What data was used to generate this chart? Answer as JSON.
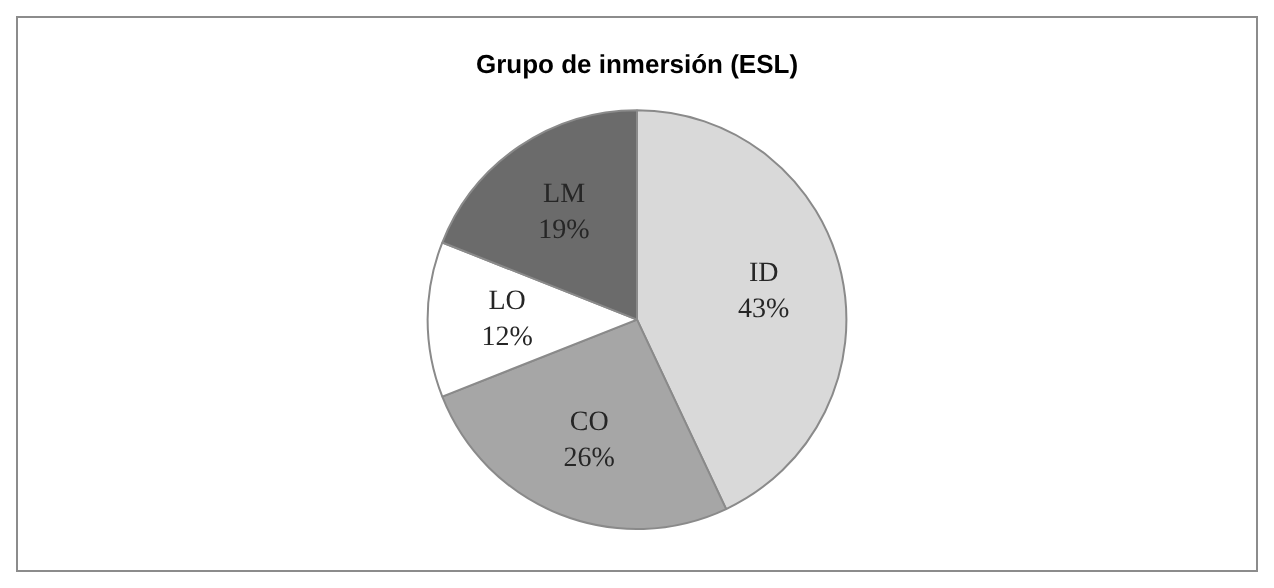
{
  "chart_data": {
    "type": "pie",
    "title": "Grupo de inmersión (ESL)",
    "categories": [
      "ID",
      "CO",
      "LO",
      "LM"
    ],
    "values": [
      43,
      26,
      12,
      19
    ],
    "colors": [
      "#d9d9d9",
      "#a6a6a6",
      "#ffffff",
      "#6b6b6b"
    ],
    "value_labels": [
      "43%",
      "26%",
      "12%",
      "19%"
    ],
    "legend": false
  }
}
